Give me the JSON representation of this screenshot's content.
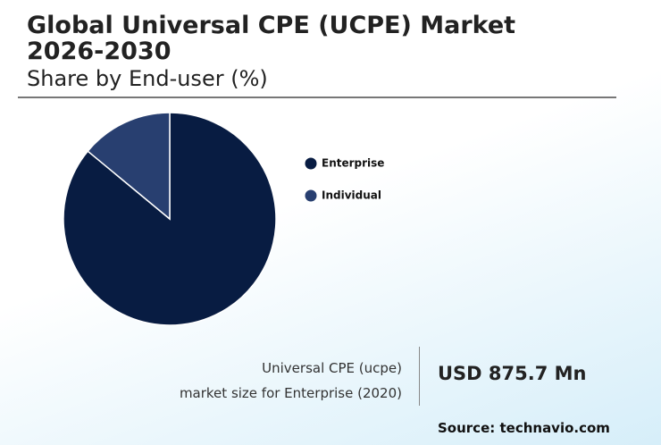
{
  "chart_data": {
    "type": "pie",
    "title": "Global Universal CPE (UCPE) Market 2026-2030",
    "subtitle": "Share by End-user (%)",
    "categories": [
      "Enterprise",
      "Individual"
    ],
    "values": [
      86,
      14
    ],
    "colors": [
      "#081c42",
      "#283f70"
    ]
  },
  "callout": {
    "label_lines": [
      "Universal CPE (ucpe)",
      "market size for Enterprise (2020)"
    ],
    "value": "USD 875.7 Mn"
  },
  "source": "Source: technavio.com"
}
